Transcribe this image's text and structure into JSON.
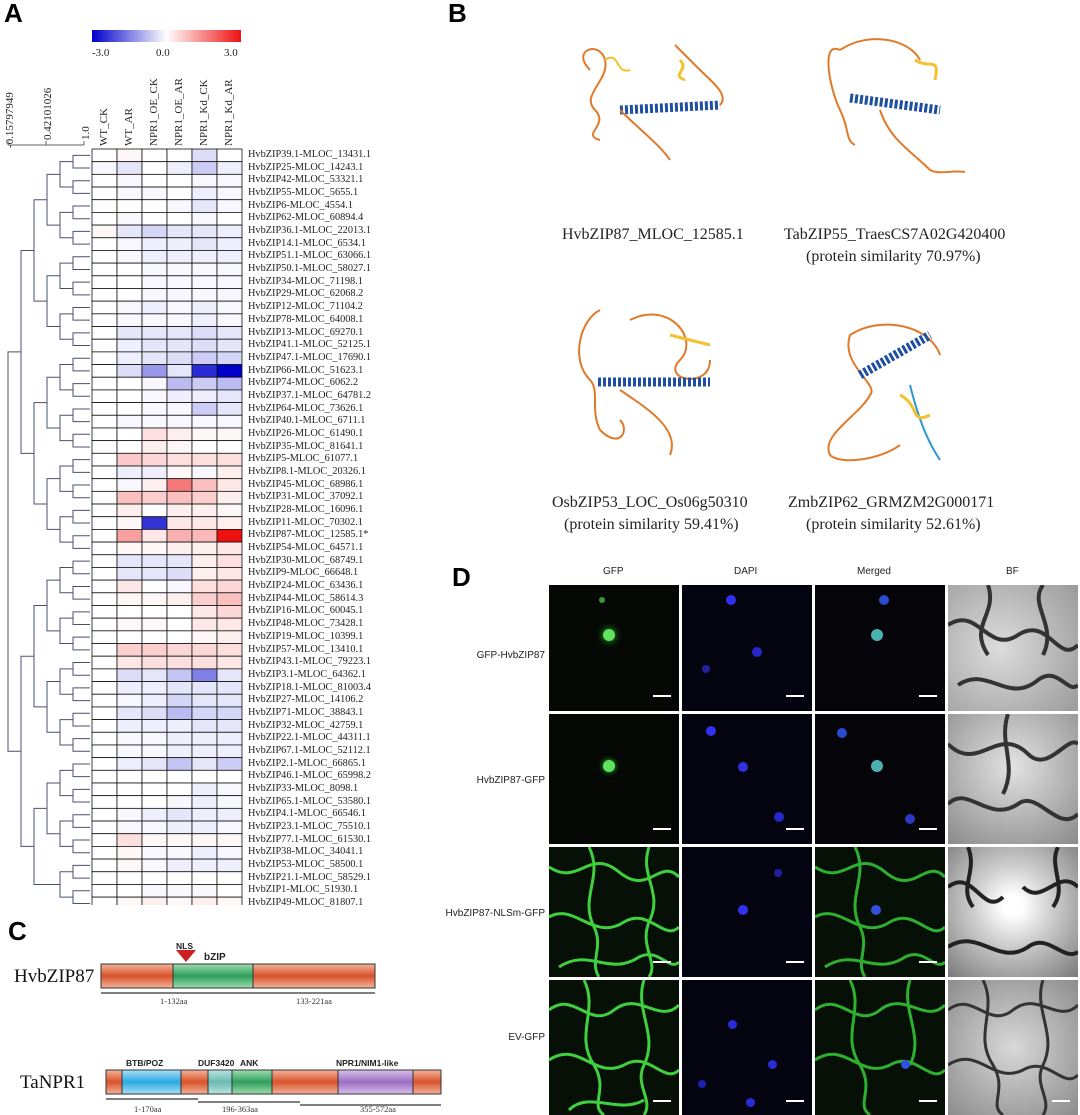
{
  "panels": {
    "a": "A",
    "b": "B",
    "c": "C",
    "d": "D"
  },
  "heatmap": {
    "colorbar": {
      "min_label": "-3.0",
      "mid_label": "0.0",
      "max_label": "3.0",
      "low_color": "#0000cc",
      "mid_color": "#ffffff",
      "high_color": "#ee1111"
    },
    "dendro_scale": [
      "-0.15797949",
      "0.42101026",
      "1.0"
    ],
    "columns": [
      "WT_CK",
      "WT_AR",
      "NPR1_OE_CK",
      "NPR1_OE_AR",
      "NPR1_Kd_CK",
      "NPR1_Kd_AR"
    ],
    "genes": [
      "HvbZIP39.1-MLOC_13431.1",
      "HvbZIP25-MLOC_14243.1",
      "HvbZIP42-MLOC_53321.1",
      "HvbZIP55-MLOC_5655.1",
      "HvbZIP6-MLOC_4554.1",
      "HvbZIP62-MLOC_60894.4",
      "HvbZIP36.1-MLOC_22013.1",
      "HvbZIP14.1-MLOC_6534.1",
      "HvbZIP51.1-MLOC_63066.1",
      "HvbZIP50.1-MLOC_58027.1",
      "HvbZIP34-MLOC_71198.1",
      "HvbZIP29-MLOC_62068.2",
      "HvbZIP12-MLOC_71104.2",
      "HvbZIP78-MLOC_64008.1",
      "HvbZIP13-MLOC_69270.1",
      "HvbZIP41.1-MLOC_52125.1",
      "HvbZIP47.1-MLOC_17690.1",
      "HvbZIP66-MLOC_51623.1",
      "HvbZIP74-MLOC_6062.2",
      "HvbZIP37.1-MLOC_64781.2",
      "HvbZIP64-MLOC_73626.1",
      "HvbZIP40.1-MLOC_6711.1",
      "HvbZIP26-MLOC_61490.1",
      "HvbZIP35-MLOC_81641.1",
      "HvbZIP5-MLOC_61077.1",
      "HvbZIP8.1-MLOC_20326.1",
      "HvbZIP45-MLOC_68986.1",
      "HvbZIP31-MLOC_37092.1",
      "HvbZIP28-MLOC_16096.1",
      "HvbZIP11-MLOC_70302.1",
      "HvbZIP87-MLOC_12585.1*",
      "HvbZIP54-MLOC_64571.1",
      "HvbZIP30-MLOC_68749.1",
      "HvbZIP9-MLOC_66648.1",
      "HvbZIP24-MLOC_63436.1",
      "HvbZIP44-MLOC_58614.3",
      "HvbZIP16-MLOC_60045.1",
      "HvbZIP48-MLOC_73428.1",
      "HvbZIP19-MLOC_10399.1",
      "HvbZIP57-MLOC_13410.1",
      "HvbZIP43.1-MLOC_79223.1",
      "HvbZIP3.1-MLOC_64362.1",
      "HvbZIP18.1-MLOC_81003.4",
      "HvbZIP27-MLOC_14106.2",
      "HvbZIP71-MLOC_38843.1",
      "HvbZIP32-MLOC_42759.1",
      "HvbZIP22.1-MLOC_44311.1",
      "HvbZIP67.1-MLOC_52112.1",
      "HvbZIP2.1-MLOC_66865.1",
      "HvbZIP46.1-MLOC_65998.2",
      "HvbZIP33-MLOC_8098.1",
      "HvbZIP65.1-MLOC_53580.1",
      "HvbZIP4.1-MLOC_66546.1",
      "HvbZIP23.1-MLOC_75510.1",
      "HvbZIP77.1-MLOC_61530.1",
      "HvbZIP38-MLOC_34041.1",
      "HvbZIP53-MLOC_58500.1",
      "HvbZIP21.1-MLOC_58529.1",
      "HvbZIP1-MLOC_51930.1",
      "HvbZIP49-MLOC_81807.1"
    ],
    "values": [
      [
        0,
        0.1,
        0,
        0,
        -0.4,
        0
      ],
      [
        -0.1,
        -0.3,
        0,
        -0.2,
        -0.6,
        -0.2
      ],
      [
        0,
        -0.1,
        0,
        0,
        -0.1,
        -0.1
      ],
      [
        0,
        -0.1,
        -0.1,
        0,
        -0.2,
        -0.1
      ],
      [
        0,
        0,
        0,
        -0.1,
        -0.3,
        -0.1
      ],
      [
        0,
        -0.1,
        0,
        0,
        -0.1,
        0
      ],
      [
        0.1,
        -0.3,
        -0.5,
        -0.3,
        -0.3,
        -0.2
      ],
      [
        0,
        -0.1,
        -0.2,
        -0.2,
        -0.3,
        -0.2
      ],
      [
        0,
        -0.1,
        -0.2,
        -0.2,
        -0.2,
        -0.2
      ],
      [
        0,
        0,
        -0.1,
        -0.1,
        -0.1,
        -0.1
      ],
      [
        0,
        0,
        -0.1,
        -0.1,
        -0.1,
        -0.1
      ],
      [
        0,
        0,
        -0.1,
        -0.1,
        -0.1,
        -0.1
      ],
      [
        0,
        -0.1,
        -0.2,
        -0.1,
        -0.2,
        -0.1
      ],
      [
        0,
        -0.1,
        -0.1,
        -0.1,
        -0.2,
        -0.1
      ],
      [
        0,
        -0.3,
        -0.3,
        -0.3,
        -0.4,
        -0.3
      ],
      [
        0,
        -0.2,
        -0.3,
        -0.3,
        -0.4,
        -0.3
      ],
      [
        0,
        -0.2,
        -0.3,
        -0.4,
        -0.6,
        -0.5
      ],
      [
        0,
        -0.4,
        -1.2,
        -0.3,
        -2.5,
        -3.0
      ],
      [
        0,
        0,
        -0.1,
        -0.8,
        -0.6,
        -0.8
      ],
      [
        0,
        0,
        -0.1,
        -0.2,
        -0.2,
        -0.3
      ],
      [
        0,
        0,
        -0.1,
        -0.1,
        -0.6,
        -0.3
      ],
      [
        0,
        -0.1,
        -0.1,
        -0.1,
        -0.1,
        -0.1
      ],
      [
        0,
        0,
        0.4,
        0.2,
        0.1,
        0.1
      ],
      [
        0,
        0,
        0.2,
        0.1,
        0,
        0
      ],
      [
        0,
        0.7,
        0.5,
        0.4,
        0.4,
        0.4
      ],
      [
        0,
        -0.2,
        -0.2,
        0.1,
        -0.1,
        0.2
      ],
      [
        0,
        -0.1,
        0.2,
        1.7,
        0.8,
        0.3
      ],
      [
        0,
        0.8,
        0.6,
        0.8,
        0.6,
        0.2
      ],
      [
        0,
        0.2,
        0,
        0.2,
        0.2,
        0.1
      ],
      [
        0,
        0.1,
        -2.4,
        0.3,
        0.3,
        0.2
      ],
      [
        0,
        1.2,
        0.3,
        1.0,
        0.9,
        3.0
      ],
      [
        0,
        0.1,
        0.1,
        0.2,
        0.2,
        0.3
      ],
      [
        0,
        -0.3,
        -0.3,
        -0.3,
        0.2,
        0.4
      ],
      [
        0,
        -0.3,
        -0.3,
        -0.4,
        0.2,
        0.3
      ],
      [
        0,
        0.3,
        0,
        -0.1,
        0.4,
        0.5
      ],
      [
        0,
        0.1,
        0.1,
        0.2,
        0.6,
        0.8
      ],
      [
        0,
        0,
        0,
        0,
        0.3,
        0.5
      ],
      [
        0,
        0.1,
        0.1,
        0,
        0.3,
        0.3
      ],
      [
        0,
        0,
        0,
        0,
        0.1,
        0.2
      ],
      [
        0,
        0.6,
        0.6,
        0.5,
        0.5,
        0.4
      ],
      [
        0,
        0.3,
        0.4,
        0.4,
        0.4,
        0.3
      ],
      [
        0,
        -0.4,
        -0.3,
        -0.7,
        -1.5,
        -0.3
      ],
      [
        0,
        -0.2,
        -0.2,
        -0.3,
        -0.3,
        -0.3
      ],
      [
        0,
        -0.1,
        -0.2,
        -0.5,
        -0.3,
        -0.3
      ],
      [
        0,
        -0.3,
        -0.4,
        -0.8,
        -0.5,
        -0.5
      ],
      [
        0,
        -0.2,
        -0.2,
        -0.2,
        -0.3,
        -0.3
      ],
      [
        0,
        -0.1,
        -0.1,
        -0.2,
        -0.2,
        -0.2
      ],
      [
        0,
        -0.1,
        -0.1,
        -0.2,
        -0.2,
        -0.2
      ],
      [
        0,
        -0.2,
        -0.3,
        -0.7,
        -0.3,
        -0.6
      ],
      [
        0,
        0,
        0,
        0,
        0,
        0
      ],
      [
        0,
        0,
        0,
        0,
        -0.2,
        -0.1
      ],
      [
        0,
        0,
        0,
        -0.1,
        -0.2,
        -0.1
      ],
      [
        0,
        -0.1,
        -0.2,
        -0.3,
        -0.2,
        -0.2
      ],
      [
        0,
        -0.1,
        -0.1,
        -0.2,
        -0.2,
        -0.1
      ],
      [
        0,
        0.4,
        0.1,
        0.1,
        0.1,
        0.1
      ],
      [
        0,
        0.1,
        -0.1,
        -0.1,
        -0.2,
        -0.1
      ],
      [
        0,
        0.1,
        -0.1,
        -0.2,
        -0.2,
        -0.2
      ],
      [
        0,
        0,
        0,
        0,
        0,
        0
      ],
      [
        0,
        0,
        -0.1,
        -0.1,
        -0.1,
        0
      ],
      [
        0,
        0.1,
        0.2,
        0.1,
        0.2,
        0.1
      ]
    ]
  },
  "structures": {
    "hvbzip87": {
      "name": "HvbZIP87_MLOC_12585.1",
      "similarity": ""
    },
    "tabzip55": {
      "name": "TabZIP55_TraesCS7A02G420400",
      "similarity": "(protein similarity  70.97%)"
    },
    "osbzip53": {
      "name": "OsbZIP53_LOC_Os06g50310",
      "similarity": "(protein similarity  59.41%)"
    },
    "zmbzip62": {
      "name": "ZmbZIP62_GRMZM2G000171",
      "similarity": "(protein similarity  52.61%)"
    }
  },
  "domains": {
    "hvbzip87": {
      "name": "HvbZIP87",
      "nls": "NLS",
      "bzip": "bZIP",
      "range1": "1-132aa",
      "range2": "133-221aa"
    },
    "tanpr1": {
      "name": "TaNPR1",
      "btb": "BTB/POZ",
      "duf": "DUF3420",
      "ank": "ANK",
      "npr": "NPR1/NIM1-like",
      "range1": "1-170aa",
      "range2": "196-363aa",
      "range3": "355-572aa"
    }
  },
  "microscopy": {
    "columns": [
      "GFP",
      "DAPI",
      "Merged",
      "BF"
    ],
    "rows": [
      "GFP-HvbZIP87",
      "HvbZIP87-GFP",
      "HvbZIP87-NLSm-GFP",
      "EV-GFP"
    ]
  }
}
